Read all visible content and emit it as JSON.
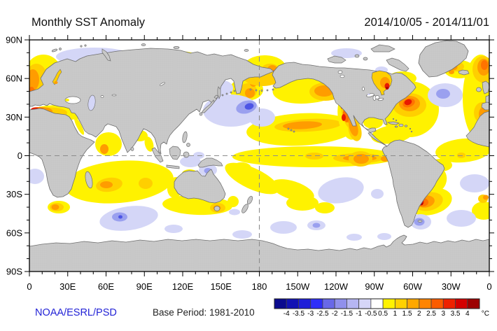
{
  "header": {
    "title": "Monthly SST Anomaly",
    "date_range": "2014/10/05 - 2014/11/01"
  },
  "footer": {
    "credit": "NOAA/ESRL/PSD",
    "base_period": "Base Period: 1981-2010"
  },
  "axes": {
    "lat_ticks": [
      {
        "label": "90N",
        "lat": 90
      },
      {
        "label": "60N",
        "lat": 60
      },
      {
        "label": "30N",
        "lat": 30
      },
      {
        "label": "0",
        "lat": 0
      },
      {
        "label": "30S",
        "lat": -30
      },
      {
        "label": "60S",
        "lat": -60
      },
      {
        "label": "90S",
        "lat": -90
      }
    ],
    "lon_ticks": [
      {
        "label": "0",
        "lon": 0
      },
      {
        "label": "30E",
        "lon": 30
      },
      {
        "label": "60E",
        "lon": 60
      },
      {
        "label": "90E",
        "lon": 90
      },
      {
        "label": "120E",
        "lon": 120
      },
      {
        "label": "150E",
        "lon": 150
      },
      {
        "label": "180",
        "lon": 180
      },
      {
        "label": "150W",
        "lon": 210
      },
      {
        "label": "120W",
        "lon": 240
      },
      {
        "label": "90W",
        "lon": 270
      },
      {
        "label": "60W",
        "lon": 300
      },
      {
        "label": "30W",
        "lon": 330
      },
      {
        "label": "0",
        "lon": 360
      }
    ]
  },
  "colorbar": {
    "units": "°C",
    "tick_labels": [
      "-4",
      "-3.5",
      "-3",
      "-2.5",
      "-2",
      "-1.5",
      "-1",
      "-0.5",
      "0.5",
      "1",
      "1.5",
      "2",
      "2.5",
      "3",
      "3.5",
      "4"
    ],
    "cell_colors": [
      "#0a0a8e",
      "#1212b4",
      "#1d1dd8",
      "#2e2ef8",
      "#6868e8",
      "#9090ec",
      "#b6b6f2",
      "#d6d6f8",
      "#ffffff",
      "#fff200",
      "#ffd100",
      "#ffa800",
      "#ff8400",
      "#fb5c00",
      "#ee2200",
      "#d40000",
      "#9c0000"
    ]
  },
  "palette": {
    "land_gray": "#c9c9c9",
    "coastline": "#6e6e6e",
    "ocean_white": "#ffffff",
    "credit_blue": "#2323d6",
    "warm_yellow": "#fff200",
    "warm_gold": "#ffcf00",
    "warm_orange": "#ff9c00",
    "warm_red": "#e81a00",
    "cool_lavender": "#d4d6f7",
    "cool_blue": "#9aa0ef"
  },
  "chart_data": {
    "type": "heatmap",
    "title": "Monthly SST Anomaly",
    "subtitle": "2014/10/05 - 2014/11/01",
    "units": "°C",
    "projection": "equirectangular world map, Pacific-centered, longitudes 0E to 360E (0-180E then 180-0W), latitudes 90N to 90S",
    "xlabel_ticks": [
      "0",
      "30E",
      "60E",
      "90E",
      "120E",
      "150E",
      "180",
      "150W",
      "120W",
      "90W",
      "60W",
      "30W",
      "0"
    ],
    "ylabel_ticks": [
      "90N",
      "60N",
      "30N",
      "0",
      "30S",
      "60S",
      "90S"
    ],
    "scale_levels_c": [
      -4,
      -3.5,
      -3,
      -2.5,
      -2,
      -1.5,
      -1,
      -0.5,
      0.5,
      1,
      1.5,
      2,
      2.5,
      3,
      3.5,
      4
    ],
    "grid_reference_lines": [
      "equator (0 lat, dashed)",
      "date line (180 lon, dashed)"
    ],
    "legend_position": "bottom",
    "base_period": "1981-2010",
    "anomaly_regions": [
      {
        "region": "Gulf of Alaska / US-Canada west coast",
        "approx_anomaly_c": 2.5,
        "note": "broad warm blob, red spots +3.5 at coast"
      },
      {
        "region": "Central North Pacific 30-45N",
        "approx_anomaly_c": 1.5
      },
      {
        "region": "Northwest Pacific east of Japan (35-40N,160E-180)",
        "approx_anomaly_c": -2,
        "note": "cool pool with -2.5 core"
      },
      {
        "region": "Kamchatka / Sea of Okhotsk rim",
        "approx_anomaly_c": 2
      },
      {
        "region": "Equatorial Pacific Nino band",
        "approx_anomaly_c": 1,
        "note": "orange streaks to +1.5 near 120-90W"
      },
      {
        "region": "Southeast tropical Pacific (5-20S,130-95W)",
        "approx_anomaly_c": -0.7
      },
      {
        "region": "Northwest Atlantic off US east coast",
        "approx_anomaly_c": 3,
        "note": "red core +3.5"
      },
      {
        "region": "Central North Atlantic south of Greenland",
        "approx_anomaly_c": -1
      },
      {
        "region": "Northeast Atlantic / European seaboard",
        "approx_anomaly_c": 2
      },
      {
        "region": "Norwegian Sea and North Sea",
        "approx_anomaly_c": 2
      },
      {
        "region": "Mediterranean Sea",
        "approx_anomaly_c": 2.5,
        "note": "western basin red +3"
      },
      {
        "region": "Hudson Bay",
        "approx_anomaly_c": 2.5,
        "note": "small dark-red spot +4"
      },
      {
        "region": "Arctic seas north of Siberia",
        "approx_anomaly_c": -0.7,
        "note": "patchy cool offshore, warm +1.5 along coast"
      },
      {
        "region": "Bering Strait / Chukchi Sea",
        "approx_anomaly_c": 2
      },
      {
        "region": "Southwest Atlantic off Argentina-Uruguay",
        "approx_anomaly_c": 2.5,
        "note": "red core +3.5"
      },
      {
        "region": "South Atlantic subtropics",
        "approx_anomaly_c": -0.7,
        "note": "scattered lavender patches"
      },
      {
        "region": "Southern Indian Ocean 10-35S",
        "approx_anomaly_c": 1,
        "note": "gold cores +1.5"
      },
      {
        "region": "Kerguelen sector 45-55S",
        "approx_anomaly_c": -1,
        "note": "blue core -2"
      },
      {
        "region": "South of Australia / Tasman Sea",
        "approx_anomaly_c": 1,
        "note": "orange +2 near Tasmania"
      },
      {
        "region": "Indonesian seas / west of New Guinea",
        "approx_anomaly_c": -0.7
      },
      {
        "region": "Arabian Sea and tropical Indian Ocean",
        "approx_anomaly_c": 0.8
      },
      {
        "region": "Southwest of Africa (38S,15E)",
        "approx_anomaly_c": 2
      }
    ]
  }
}
